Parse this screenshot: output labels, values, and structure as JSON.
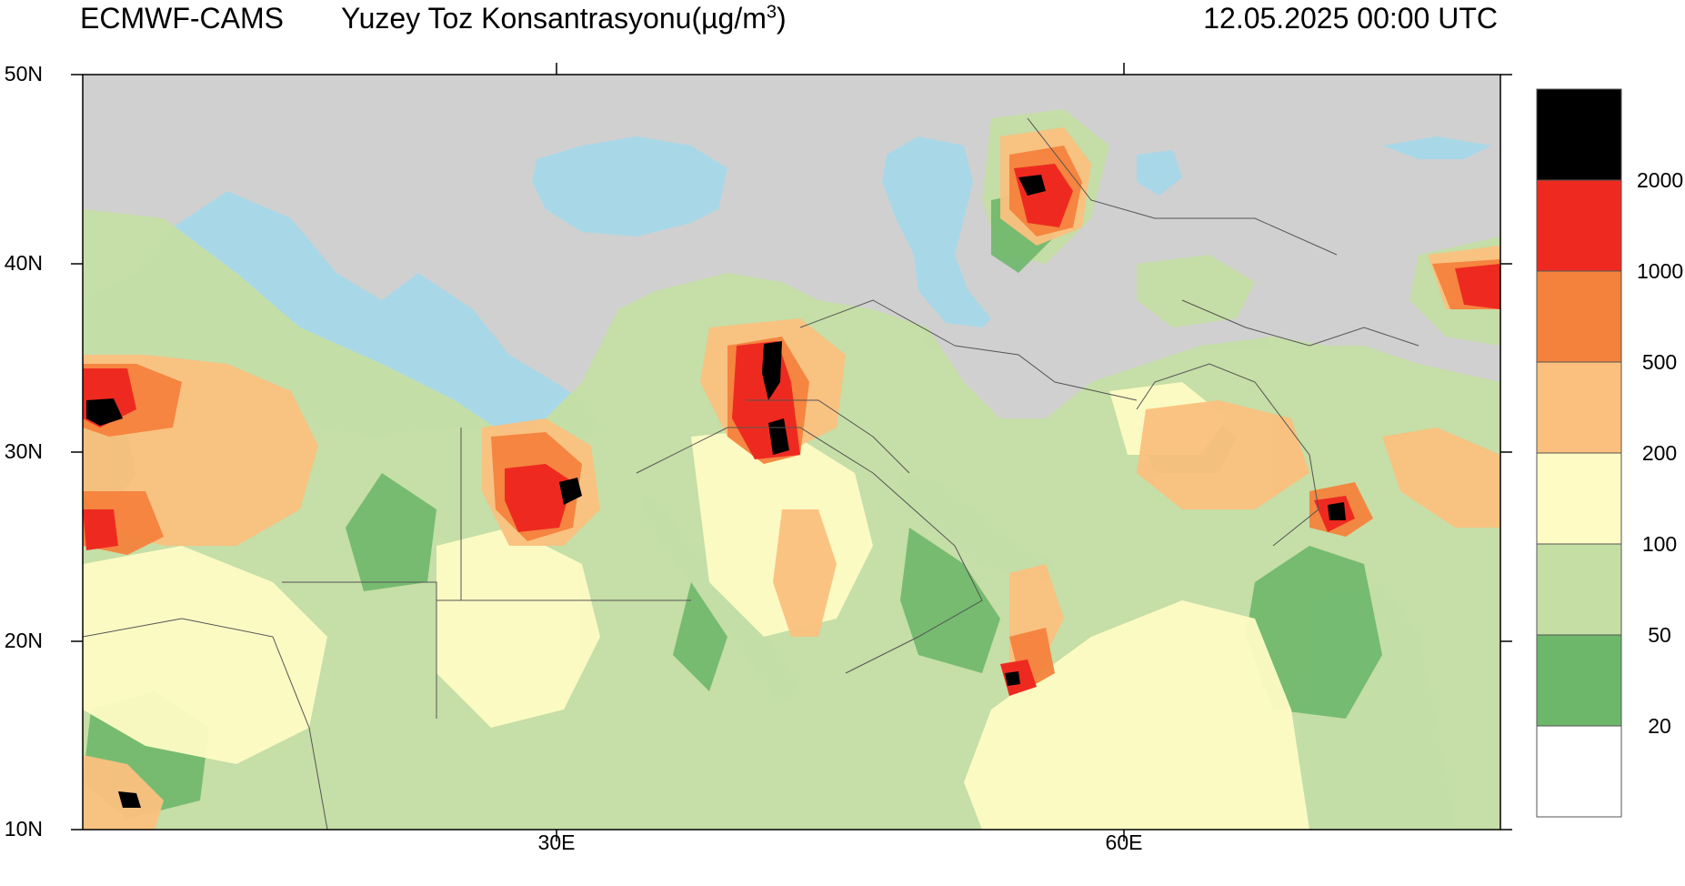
{
  "header": {
    "source": "ECMWF-CAMS",
    "title": "Yuzey Toz Konsantrasyonu(µg/m",
    "title_sup": "3",
    "title_tail": ")",
    "datetime": "12.05.2025 00:00 UTC"
  },
  "axes": {
    "lat_labels": [
      "50N",
      "40N",
      "30N",
      "20N",
      "10N"
    ],
    "lon_labels": [
      "30E",
      "60E"
    ]
  },
  "colorbar": {
    "colors": [
      "#000000",
      "#ee2a20",
      "#f4823c",
      "#fbc07e",
      "#fefbc4",
      "#c5dea4",
      "#6db76a",
      "#ffffff"
    ],
    "labels": [
      "2000",
      "1000",
      "500",
      "200",
      "100",
      "50",
      "20"
    ]
  },
  "map_colors": {
    "land": "#d0d0d0",
    "water": "#a8d8e8",
    "border": "#555555"
  }
}
